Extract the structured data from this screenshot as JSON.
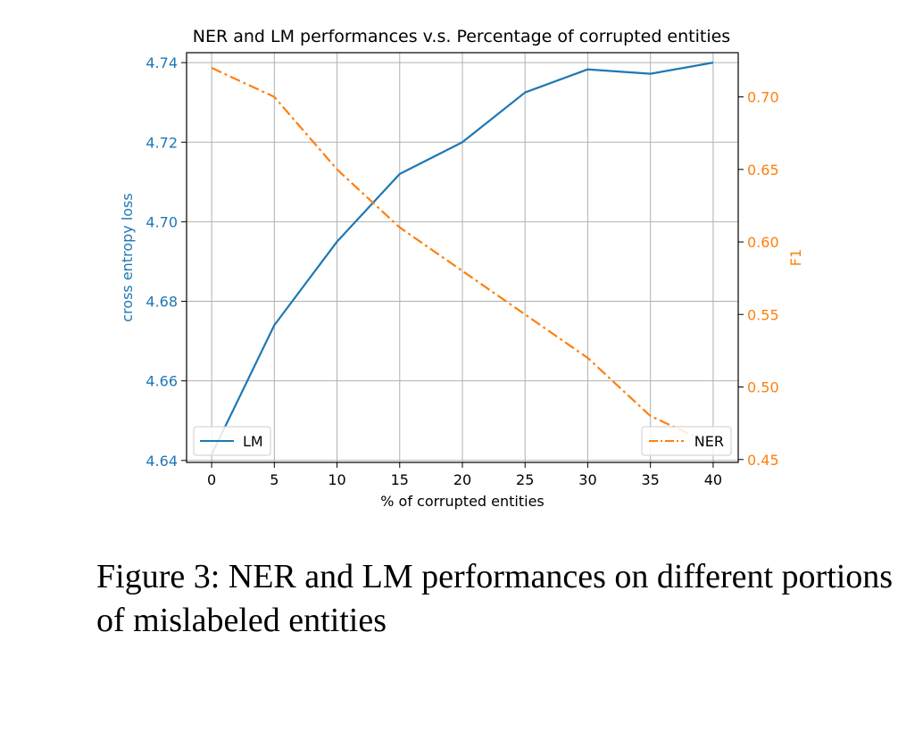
{
  "chart_data": {
    "type": "line",
    "title": "NER and LM performances v.s. Percentage of corrupted entities",
    "xlabel": "% of corrupted entities",
    "ylabel_left": "cross entropy loss",
    "ylabel_right": "F1",
    "x": [
      0,
      5,
      10,
      15,
      20,
      25,
      30,
      35,
      40
    ],
    "x_ticks": [
      "0",
      "5",
      "10",
      "15",
      "20",
      "25",
      "30",
      "35",
      "40"
    ],
    "xlim": [
      -2,
      42
    ],
    "ylim_left": [
      4.6395,
      4.7425
    ],
    "ylim_right": [
      0.448,
      0.7305
    ],
    "yticks_left": [
      "4.64",
      "4.66",
      "4.68",
      "4.70",
      "4.72",
      "4.74"
    ],
    "yticks_right": [
      "0.45",
      "0.50",
      "0.55",
      "0.60",
      "0.65",
      "0.70"
    ],
    "grid": true,
    "series": [
      {
        "name": "LM",
        "axis": "left",
        "color": "#1f77b4",
        "style": "solid",
        "legend_position": "lower-left",
        "values": [
          4.6415,
          4.674,
          4.695,
          4.712,
          4.72,
          4.7325,
          4.7383,
          4.7372,
          4.74
        ]
      },
      {
        "name": "NER",
        "axis": "right",
        "color": "#ff7f0e",
        "style": "dash-dot",
        "legend_position": "lower-right",
        "values": [
          0.72,
          0.7,
          0.65,
          0.61,
          0.58,
          0.55,
          0.52,
          0.48,
          0.46
        ]
      }
    ]
  },
  "caption": "Figure 3: NER and LM performances on different portions of mislabeled entities"
}
